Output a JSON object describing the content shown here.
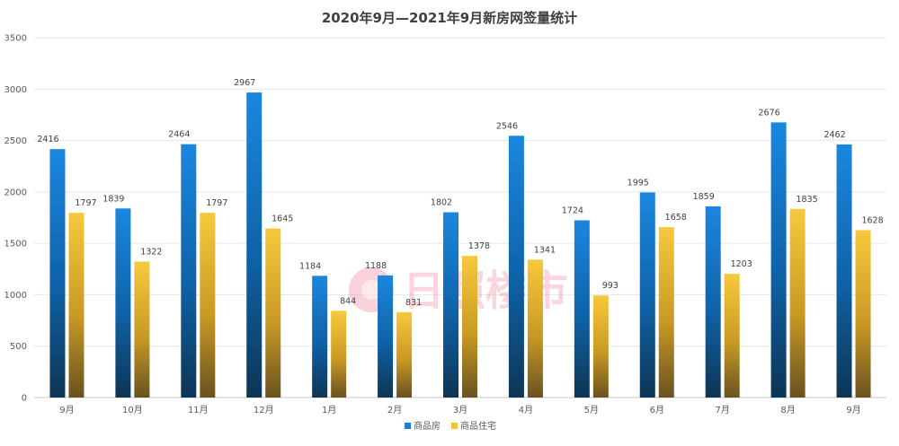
{
  "chart_data": {
    "type": "bar",
    "title": "2020年9月—2021年9月新房网签量统计",
    "xlabel": "",
    "ylabel": "",
    "ylim": [
      0,
      3500
    ],
    "yticks": [
      0,
      500,
      1000,
      1500,
      2000,
      2500,
      3000,
      3500
    ],
    "grid": true,
    "legend_position": "bottom",
    "categories": [
      "9月",
      "10月",
      "11月",
      "12月",
      "1月",
      "2月",
      "3月",
      "4月",
      "5月",
      "6月",
      "7月",
      "8月",
      "9月"
    ],
    "series": [
      {
        "name": "商品房",
        "color": "#1a7fd4",
        "values": [
          2416,
          1839,
          2464,
          2967,
          1184,
          1188,
          1802,
          2546,
          1724,
          1995,
          1859,
          2676,
          2462
        ]
      },
      {
        "name": "商品住宅",
        "color": "#f2c230",
        "values": [
          1797,
          1322,
          1797,
          1645,
          844,
          831,
          1378,
          1341,
          993,
          1658,
          1203,
          1835,
          1628
        ]
      }
    ]
  },
  "watermark": {
    "text": "日照楼市",
    "icon": "logo-circle-icon"
  }
}
